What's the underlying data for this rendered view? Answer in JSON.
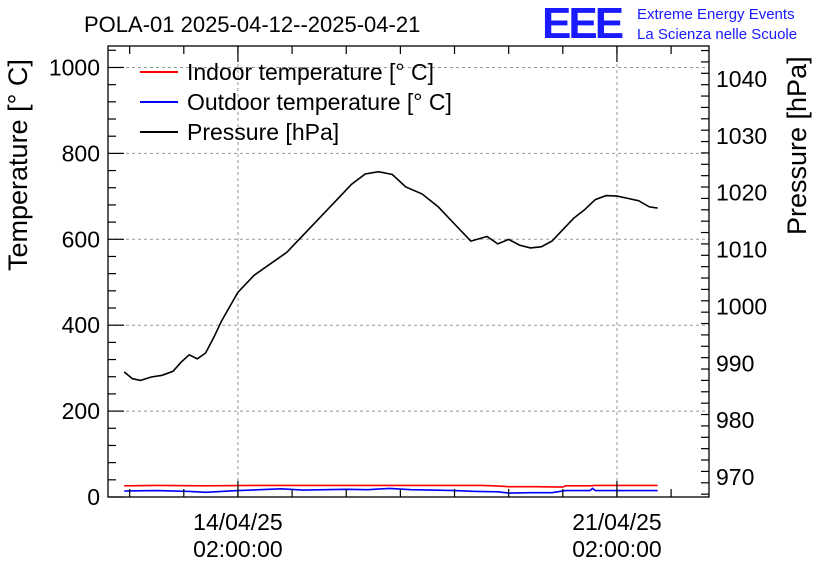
{
  "colors": {
    "indoor": "#ff0000",
    "outdoor": "#0000ff",
    "pressure": "#000000",
    "brand": "#1a1aff"
  },
  "brand": {
    "logo": "EEE",
    "line1": "Extreme Energy Events",
    "line2": "La Scienza nelle Scuole"
  },
  "chart_data": {
    "type": "line",
    "title": "POLA-01 2025-04-12--2025-04-21",
    "ylabel": "Temperature [° C]",
    "y2label": "Pressure [hPa]",
    "ylim": [
      0,
      1050
    ],
    "y2lim": [
      966.5,
      1045.8
    ],
    "yticks": [
      "0",
      "200",
      "400",
      "600",
      "800",
      "1000"
    ],
    "y2ticks": [
      "970",
      "980",
      "990",
      "1000",
      "1010",
      "1020",
      "1030",
      "1040"
    ],
    "x_range_days": [
      -2.4,
      8.7
    ],
    "xticks": [
      {
        "day": 0,
        "date": "14/04/25",
        "time": "02:00:00"
      },
      {
        "day": 7,
        "date": "21/04/25",
        "time": "02:00:00"
      }
    ],
    "legend": [
      "Indoor temperature [° C]",
      "Outdoor temperature [° C]",
      "Pressure [hPa]"
    ],
    "series": [
      {
        "name": "Pressure [hPa]",
        "axis": "right",
        "color": "#000000",
        "x": [
          -2.1,
          -1.95,
          -1.8,
          -1.6,
          -1.4,
          -1.2,
          -1.05,
          -0.9,
          -0.75,
          -0.6,
          -0.45,
          -0.3,
          -0.15,
          0,
          0.3,
          0.6,
          0.9,
          1.2,
          1.5,
          1.8,
          2.1,
          2.35,
          2.6,
          2.85,
          3.1,
          3.4,
          3.7,
          4.0,
          4.3,
          4.6,
          4.8,
          5.0,
          5.2,
          5.4,
          5.6,
          5.8,
          6.0,
          6.2,
          6.4,
          6.6,
          6.8,
          7.0,
          7.2,
          7.4,
          7.6,
          7.75
        ],
        "values": [
          988.5,
          987.3,
          987.0,
          987.6,
          987.9,
          988.6,
          990.2,
          991.5,
          990.8,
          991.8,
          994.5,
          997.5,
          1000.0,
          1002.5,
          1005.5,
          1007.5,
          1009.5,
          1012.5,
          1015.5,
          1018.5,
          1021.5,
          1023.3,
          1023.7,
          1023.2,
          1021.0,
          1019.8,
          1017.5,
          1014.5,
          1011.5,
          1012.3,
          1011.0,
          1011.8,
          1010.8,
          1010.3,
          1010.5,
          1011.5,
          1013.5,
          1015.5,
          1017.0,
          1018.8,
          1019.5,
          1019.4,
          1019.0,
          1018.6,
          1017.5,
          1017.3
        ]
      },
      {
        "name": "Indoor temperature [° C]",
        "axis": "left",
        "color": "#ff0000",
        "x": [
          -2.1,
          -1.5,
          -0.6,
          0.5,
          1.5,
          2.5,
          3.5,
          4.5,
          4.7,
          4.9,
          5.0,
          5.5,
          6.0,
          6.05,
          6.5,
          6.6,
          7.0,
          7.75
        ],
        "values": [
          26,
          27,
          26,
          27,
          27,
          27,
          27,
          27,
          26,
          25,
          24,
          24,
          23,
          26,
          26,
          27,
          27,
          27
        ]
      },
      {
        "name": "Outdoor temperature [° C]",
        "axis": "left",
        "color": "#0000ff",
        "x": [
          -2.1,
          -1.5,
          -0.9,
          -0.6,
          0,
          0.4,
          0.8,
          1.2,
          1.6,
          2.0,
          2.4,
          2.8,
          3.2,
          3.6,
          4.0,
          4.4,
          4.8,
          5.0,
          5.4,
          5.8,
          6.05,
          6.5,
          6.55,
          6.6,
          7.0,
          7.75
        ],
        "values": [
          14,
          15,
          13,
          11,
          15,
          17,
          19,
          16,
          17,
          18,
          17,
          20,
          17,
          16,
          15,
          13,
          12,
          9,
          10,
          10,
          15,
          15,
          20,
          15,
          15,
          15
        ]
      }
    ]
  }
}
